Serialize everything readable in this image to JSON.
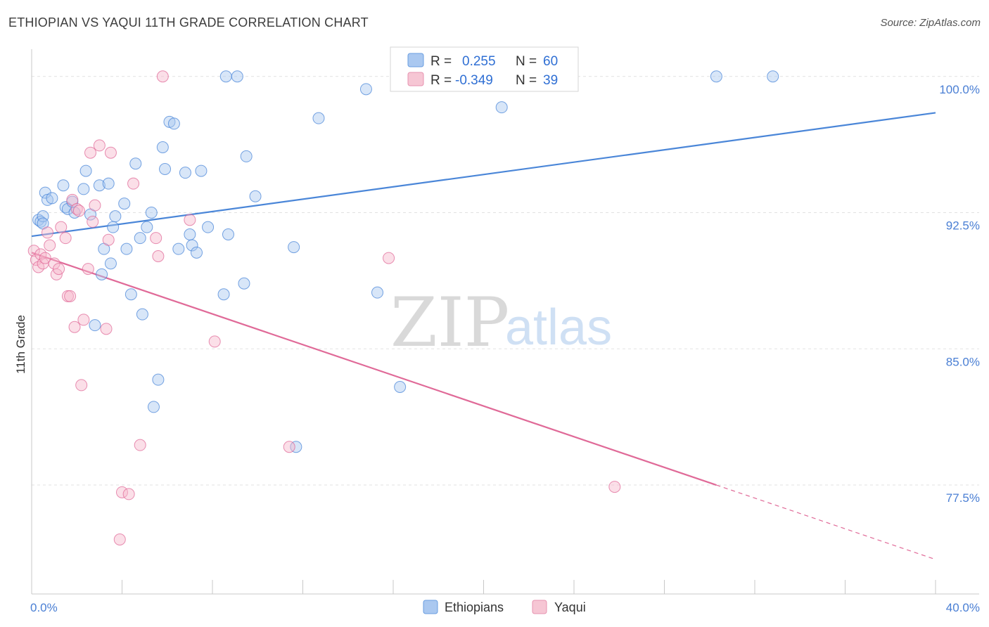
{
  "header": {
    "title": "ETHIOPIAN VS YAQUI 11TH GRADE CORRELATION CHART",
    "source": "Source: ZipAtlas.com"
  },
  "watermark": {
    "zip": "ZIP",
    "atlas": "atlas"
  },
  "legend_box": {
    "rows": [
      {
        "r_label": "R =",
        "r_value": "0.255",
        "n_label": "N =",
        "n_value": "60",
        "color": "#aac8f0"
      },
      {
        "r_label": "R =",
        "r_value": "-0.349",
        "n_label": "N =",
        "n_value": "39",
        "color": "#f6b8cb"
      }
    ]
  },
  "chart_data": {
    "type": "scatter",
    "title": "ETHIOPIAN VS YAQUI 11TH GRADE CORRELATION CHART",
    "xlabel": "",
    "ylabel": "11th Grade",
    "xlim": [
      0,
      40
    ],
    "ylim": [
      71.5,
      101.5
    ],
    "x_tick_labels": [
      "0.0%",
      "40.0%"
    ],
    "y_ticks": [
      77.5,
      85.0,
      92.5,
      100.0
    ],
    "y_tick_labels": [
      "77.5%",
      "85.0%",
      "92.5%",
      "100.0%"
    ],
    "grid": "horizontal-dashed",
    "legend_position": "top-center",
    "series": [
      {
        "name": "Ethiopians",
        "color": "#4a86d8",
        "fill": "#a9c7f0",
        "trend": {
          "x1": 0,
          "y1": 91.2,
          "x2": 40,
          "y2": 98.0,
          "dashed_from": null
        },
        "points": [
          [
            0.3,
            92.1
          ],
          [
            0.4,
            92.0
          ],
          [
            0.5,
            92.3
          ],
          [
            0.6,
            93.6
          ],
          [
            0.7,
            93.2
          ],
          [
            0.9,
            93.3
          ],
          [
            1.4,
            94.0
          ],
          [
            1.5,
            92.8
          ],
          [
            1.6,
            92.7
          ],
          [
            1.8,
            93.1
          ],
          [
            1.9,
            92.5
          ],
          [
            2.3,
            93.8
          ],
          [
            2.4,
            94.8
          ],
          [
            2.6,
            92.4
          ],
          [
            2.8,
            86.3
          ],
          [
            3.0,
            94.0
          ],
          [
            3.1,
            89.1
          ],
          [
            3.2,
            90.5
          ],
          [
            3.4,
            94.1
          ],
          [
            3.5,
            89.7
          ],
          [
            3.6,
            91.7
          ],
          [
            3.7,
            92.3
          ],
          [
            4.1,
            93.0
          ],
          [
            4.2,
            90.5
          ],
          [
            4.4,
            88.0
          ],
          [
            4.6,
            95.2
          ],
          [
            4.8,
            91.1
          ],
          [
            4.9,
            86.9
          ],
          [
            5.1,
            91.7
          ],
          [
            5.3,
            92.5
          ],
          [
            5.4,
            81.8
          ],
          [
            5.6,
            83.3
          ],
          [
            5.8,
            96.1
          ],
          [
            5.9,
            94.9
          ],
          [
            6.1,
            97.5
          ],
          [
            6.3,
            97.4
          ],
          [
            6.5,
            90.5
          ],
          [
            6.8,
            94.7
          ],
          [
            7.0,
            91.3
          ],
          [
            7.1,
            90.7
          ],
          [
            7.3,
            90.3
          ],
          [
            7.5,
            94.8
          ],
          [
            7.8,
            91.7
          ],
          [
            8.5,
            88.0
          ],
          [
            8.6,
            100.0
          ],
          [
            8.7,
            91.3
          ],
          [
            9.1,
            100.0
          ],
          [
            9.4,
            88.6
          ],
          [
            9.5,
            95.6
          ],
          [
            9.9,
            93.4
          ],
          [
            11.6,
            90.6
          ],
          [
            11.7,
            79.6
          ],
          [
            12.7,
            97.7
          ],
          [
            14.8,
            99.3
          ],
          [
            15.3,
            88.1
          ],
          [
            16.3,
            82.9
          ],
          [
            20.8,
            98.3
          ],
          [
            30.3,
            100.0
          ],
          [
            32.8,
            100.0
          ],
          [
            0.5,
            91.9
          ]
        ]
      },
      {
        "name": "Yaqui",
        "color": "#e06a98",
        "fill": "#f6b8cb",
        "trend": {
          "x1": 0,
          "y1": 90.3,
          "x2": 40,
          "y2": 73.4,
          "dashed_from": 30.3
        },
        "points": [
          [
            0.1,
            90.4
          ],
          [
            0.2,
            89.9
          ],
          [
            0.3,
            89.5
          ],
          [
            0.4,
            90.2
          ],
          [
            0.5,
            89.7
          ],
          [
            0.6,
            90.0
          ],
          [
            0.7,
            91.4
          ],
          [
            0.8,
            90.7
          ],
          [
            1.0,
            89.7
          ],
          [
            1.1,
            89.1
          ],
          [
            1.2,
            89.4
          ],
          [
            1.3,
            91.7
          ],
          [
            1.5,
            91.1
          ],
          [
            1.6,
            87.9
          ],
          [
            1.7,
            87.9
          ],
          [
            1.8,
            93.2
          ],
          [
            1.9,
            86.2
          ],
          [
            2.0,
            92.7
          ],
          [
            2.1,
            92.6
          ],
          [
            2.2,
            83.0
          ],
          [
            2.3,
            86.6
          ],
          [
            2.5,
            89.4
          ],
          [
            2.6,
            95.8
          ],
          [
            2.7,
            92.0
          ],
          [
            2.8,
            92.9
          ],
          [
            3.0,
            96.2
          ],
          [
            3.3,
            86.1
          ],
          [
            3.4,
            91.0
          ],
          [
            3.5,
            95.8
          ],
          [
            3.9,
            74.5
          ],
          [
            4.0,
            77.1
          ],
          [
            4.3,
            77.0
          ],
          [
            4.5,
            94.1
          ],
          [
            4.8,
            79.7
          ],
          [
            5.5,
            91.1
          ],
          [
            5.6,
            90.1
          ],
          [
            5.8,
            100.0
          ],
          [
            7.0,
            92.1
          ],
          [
            8.1,
            85.4
          ]
        ],
        "extra_points": [
          [
            11.4,
            79.6
          ],
          [
            15.8,
            90.0
          ],
          [
            25.8,
            77.4
          ]
        ]
      }
    ]
  },
  "bottom_legend": {
    "items": [
      {
        "label": "Ethiopians",
        "color": "#aac8f0",
        "stroke": "#6a9ee0"
      },
      {
        "label": "Yaqui",
        "color": "#f6c6d4",
        "stroke": "#e793b0"
      }
    ]
  }
}
